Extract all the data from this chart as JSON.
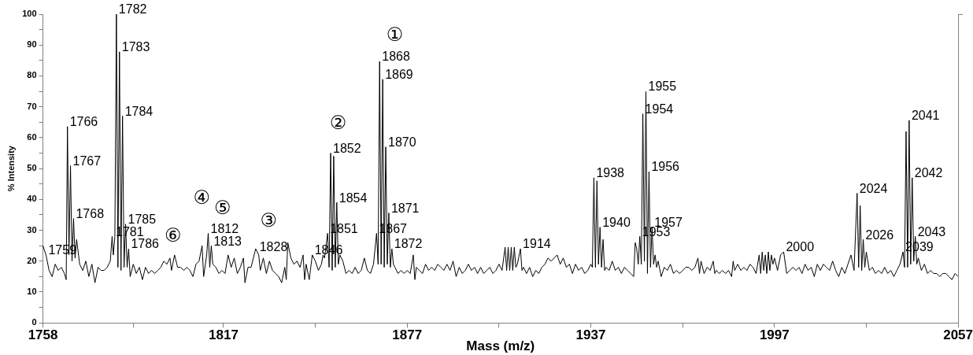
{
  "chart_data": {
    "type": "line",
    "xlabel": "Mass (m/z)",
    "ylabel": "% Intensity",
    "xlim": [
      1758,
      2057
    ],
    "ylim": [
      0,
      100
    ],
    "xticks": [
      1758,
      {
        "value": 1787.5,
        "label": null
      },
      1817,
      {
        "value": 1847,
        "label": null
      },
      1877,
      {
        "value": 1907,
        "label": null
      },
      1937,
      {
        "value": 1967,
        "label": null
      },
      1997,
      {
        "value": 2027,
        "label": null
      },
      2057
    ],
    "yticks": [
      0,
      {
        "value": 5,
        "label": null
      },
      10,
      {
        "value": 15,
        "label": null
      },
      20,
      {
        "value": 25,
        "label": null
      },
      30,
      {
        "value": 35,
        "label": null
      },
      40,
      {
        "value": 45,
        "label": null
      },
      50,
      {
        "value": 55,
        "label": null
      },
      60,
      {
        "value": 65,
        "label": null
      },
      70,
      {
        "value": 75,
        "label": null
      },
      80,
      {
        "value": 85,
        "label": null
      },
      90,
      {
        "value": 95,
        "label": null
      },
      100
    ],
    "marker": "none",
    "legend": false,
    "series": [
      {
        "color": "#000000",
        "x": [
          1758,
          1759,
          1760,
          1761,
          1762,
          1763,
          1764,
          1765,
          1765.6,
          1766,
          1766.5,
          1767,
          1767.5,
          1768,
          1768.5,
          1769,
          1770,
          1771,
          1772,
          1773,
          1774,
          1775,
          1776,
          1777,
          1778,
          1779,
          1780,
          1780.6,
          1781,
          1781.5,
          1782,
          1782.5,
          1783,
          1783.5,
          1784,
          1784.5,
          1785,
          1785.5,
          1786,
          1786.5,
          1787.5,
          1788.5,
          1789.5,
          1790.5,
          1791.5,
          1792.5,
          1793.5,
          1794.5,
          1795.5,
          1796.5,
          1797.5,
          1798.5,
          1799.5,
          1800,
          1801,
          1802,
          1803,
          1804,
          1805,
          1806,
          1807,
          1808,
          1809,
          1810,
          1810.5,
          1811.5,
          1812,
          1812.5,
          1813,
          1813.5,
          1814.5,
          1815.5,
          1816.5,
          1817.5,
          1818.5,
          1819.5,
          1820.5,
          1821.5,
          1822.5,
          1823.5,
          1824,
          1825,
          1826,
          1827,
          1827.5,
          1828,
          1828.5,
          1829,
          1830,
          1831,
          1832,
          1833,
          1834,
          1835,
          1836,
          1837,
          1837.5,
          1838,
          1839,
          1840,
          1841,
          1842,
          1843,
          1843.5,
          1844,
          1845,
          1846,
          1847,
          1848,
          1849,
          1849.5,
          1850,
          1850.5,
          1851,
          1851.5,
          1852,
          1852.5,
          1853,
          1853.5,
          1854,
          1854.5,
          1855,
          1856,
          1857,
          1858,
          1859,
          1860,
          1861,
          1862,
          1863,
          1864,
          1865,
          1866,
          1867,
          1867.5,
          1868,
          1868.5,
          1869,
          1869.5,
          1870,
          1870.5,
          1871,
          1871.5,
          1872,
          1872.5,
          1873,
          1874,
          1875,
          1876,
          1877,
          1878,
          1879,
          1879.5,
          1880,
          1881,
          1882,
          1883,
          1884,
          1885,
          1886,
          1887,
          1888,
          1889,
          1890,
          1891,
          1892,
          1893,
          1894,
          1895,
          1896,
          1897,
          1898,
          1899,
          1900,
          1901,
          1902,
          1903,
          1904,
          1905,
          1906,
          1907,
          1908,
          1909,
          1909.5,
          1910,
          1910.5,
          1911,
          1911.5,
          1912,
          1912.5,
          1913,
          1914,
          1914.5,
          1915,
          1916,
          1917,
          1918,
          1919,
          1920,
          1921,
          1922,
          1923,
          1924,
          1925,
          1926,
          1927,
          1928,
          1929,
          1930,
          1931,
          1932,
          1933,
          1934,
          1935,
          1936,
          1937,
          1937.5,
          1938,
          1938.5,
          1939,
          1939.5,
          1940,
          1940.5,
          1941,
          1941.5,
          1942,
          1943,
          1944,
          1945,
          1946,
          1947,
          1948,
          1949,
          1950,
          1951,
          1951.5,
          1952,
          1952.5,
          1953,
          1953.5,
          1954,
          1954.5,
          1955,
          1955.5,
          1956,
          1956.5,
          1957,
          1957.5,
          1958,
          1958.5,
          1959,
          1960,
          1961,
          1962,
          1963,
          1964,
          1965,
          1966,
          1967,
          1968,
          1969,
          1970,
          1971,
          1972,
          1972.5,
          1973,
          1974,
          1975,
          1976,
          1977,
          1977.5,
          1978,
          1979,
          1980,
          1981,
          1982,
          1983,
          1983.5,
          1984,
          1985,
          1986,
          1987,
          1988,
          1989,
          1990,
          1991,
          1992,
          1992.5,
          1993,
          1993.5,
          1994,
          1994.5,
          1995,
          1995.5,
          1996,
          1996.5,
          1997,
          1998,
          1999,
          2000,
          2001,
          2002,
          2003,
          2004,
          2005,
          2006,
          2007,
          2008,
          2009,
          2010,
          2011,
          2012,
          2013,
          2014,
          2015,
          2016,
          2017,
          2018,
          2019,
          2020,
          2021,
          2022,
          2023,
          2024,
          2024.5,
          2025,
          2025.5,
          2026,
          2026.5,
          2027,
          2028,
          2029,
          2030,
          2031,
          2032,
          2033,
          2034,
          2035,
          2036,
          2037,
          2038,
          2039,
          2039.5,
          2040,
          2040.5,
          2041,
          2041.5,
          2042,
          2042.5,
          2043,
          2043.5,
          2044,
          2045,
          2046,
          2047,
          2048,
          2049,
          2050,
          2051,
          2052,
          2053,
          2054,
          2055,
          2056,
          2057
        ],
        "values": [
          25,
          22,
          17,
          15,
          19,
          17,
          18,
          16,
          14,
          63.6,
          22,
          50.9,
          20,
          33.8,
          21,
          27,
          19,
          17,
          20,
          15,
          19,
          13,
          18,
          17,
          17,
          18,
          20,
          28,
          22,
          28,
          100,
          18,
          87.8,
          17,
          67,
          18,
          32,
          18,
          24,
          15,
          19,
          16,
          18,
          14,
          18,
          16,
          17,
          16,
          17,
          18,
          20,
          19,
          21,
          17,
          22,
          18,
          18,
          17,
          18,
          17,
          15,
          19,
          20,
          25,
          15,
          22,
          29,
          18,
          25,
          19,
          18,
          16,
          17,
          16,
          22,
          18,
          21,
          16,
          18,
          21,
          13,
          18,
          18,
          22,
          24,
          23,
          22,
          17,
          21,
          16,
          20,
          17,
          16,
          15,
          13,
          18,
          14,
          26,
          21,
          19,
          20,
          18,
          22,
          14,
          19,
          14,
          22,
          20,
          17,
          19,
          22,
          21,
          25,
          29,
          18,
          55,
          17,
          54,
          18,
          39,
          19,
          22,
          20,
          16,
          17,
          16,
          18,
          16,
          17,
          21,
          17,
          16,
          19,
          29,
          19,
          84.7,
          19,
          78.9,
          18,
          57,
          19,
          35.6,
          18,
          24,
          19,
          18,
          16,
          17,
          16,
          17,
          16,
          22,
          14,
          18,
          17,
          16,
          19,
          17,
          18,
          17,
          19,
          18,
          17,
          19,
          17,
          20,
          15,
          18,
          16,
          17,
          19,
          17,
          18,
          16,
          18,
          16,
          17,
          18,
          16,
          17,
          19,
          17,
          24.5,
          17,
          24.5,
          17,
          24.5,
          17,
          24.5,
          18,
          19,
          24,
          17,
          18,
          16,
          18,
          15,
          17,
          16,
          18,
          19,
          21,
          20,
          21,
          22,
          19,
          21,
          18,
          19,
          16,
          19,
          17,
          18,
          16,
          17,
          19,
          18,
          47,
          18,
          46,
          19,
          31,
          18,
          27,
          17,
          18,
          17,
          20,
          17,
          18,
          16,
          18,
          17,
          16,
          15,
          26,
          24,
          19,
          28,
          19,
          67.7,
          20,
          75,
          16,
          49,
          18,
          31,
          19,
          22,
          18,
          20,
          15,
          18,
          17,
          19,
          16,
          17,
          16,
          17,
          18,
          18,
          17,
          18,
          21,
          16,
          20,
          16,
          18,
          17,
          20,
          16,
          17,
          16,
          17,
          16,
          17,
          15,
          20,
          17,
          19,
          17,
          18,
          17,
          19,
          18,
          16,
          22,
          16,
          23,
          17,
          22,
          16,
          23,
          17,
          22,
          19,
          21,
          17,
          22,
          23,
          16,
          17,
          18,
          17,
          18,
          16,
          19,
          17,
          18,
          15,
          19,
          17,
          19,
          18,
          17,
          20,
          17,
          15,
          18,
          16,
          19,
          22,
          17,
          42,
          18,
          38,
          17,
          27,
          18,
          23,
          17,
          18,
          16,
          17,
          16,
          18,
          16,
          17,
          15,
          17,
          19,
          23,
          18,
          62,
          18,
          65.6,
          19,
          47,
          20,
          28,
          19,
          21,
          17,
          19,
          16,
          17,
          16,
          16,
          15,
          16,
          16,
          15,
          14,
          16,
          15
        ]
      }
    ],
    "annotations": [
      {
        "text": "1759",
        "x": 1759,
        "y": 22
      },
      {
        "text": "1766",
        "x": 1766,
        "y": 63.6
      },
      {
        "text": "1767",
        "x": 1767,
        "y": 50.9
      },
      {
        "text": "1768",
        "x": 1768,
        "y": 33.8
      },
      {
        "text": "1781",
        "x": 1781,
        "y": 28
      },
      {
        "text": "1782",
        "x": 1782,
        "y": 100
      },
      {
        "text": "1783",
        "x": 1783,
        "y": 87.8
      },
      {
        "text": "1784",
        "x": 1784,
        "y": 67
      },
      {
        "text": "1785",
        "x": 1785,
        "y": 32
      },
      {
        "text": "1786",
        "x": 1786,
        "y": 24
      },
      {
        "text": "1812",
        "x": 1812,
        "y": 29
      },
      {
        "text": "1813",
        "x": 1813,
        "y": 25
      },
      {
        "text": "1828",
        "x": 1828,
        "y": 23
      },
      {
        "text": "1846",
        "x": 1846,
        "y": 22
      },
      {
        "text": "1851",
        "x": 1851,
        "y": 29
      },
      {
        "text": "1852",
        "x": 1852,
        "y": 55
      },
      {
        "text": "1854",
        "x": 1854,
        "y": 39
      },
      {
        "text": "1867",
        "x": 1867,
        "y": 29
      },
      {
        "text": "1868",
        "x": 1868,
        "y": 84.7
      },
      {
        "text": "1869",
        "x": 1869,
        "y": 78.9
      },
      {
        "text": "1870",
        "x": 1870,
        "y": 57
      },
      {
        "text": "1871",
        "x": 1871,
        "y": 35.6
      },
      {
        "text": "1872",
        "x": 1872,
        "y": 24
      },
      {
        "text": "1914",
        "x": 1914,
        "y": 24
      },
      {
        "text": "1938",
        "x": 1938,
        "y": 47
      },
      {
        "text": "1940",
        "x": 1940,
        "y": 31
      },
      {
        "text": "1953",
        "x": 1953,
        "y": 28
      },
      {
        "text": "1954",
        "x": 1954,
        "y": 67.7
      },
      {
        "text": "1955",
        "x": 1955,
        "y": 75
      },
      {
        "text": "1956",
        "x": 1956,
        "y": 49
      },
      {
        "text": "1957",
        "x": 1957,
        "y": 31
      },
      {
        "text": "2000",
        "x": 2000,
        "y": 23
      },
      {
        "text": "2024",
        "x": 2024,
        "y": 42
      },
      {
        "text": "2026",
        "x": 2026,
        "y": 27
      },
      {
        "text": "2039",
        "x": 2039,
        "y": 23
      },
      {
        "text": "2041",
        "x": 2041,
        "y": 65.6
      },
      {
        "text": "2042",
        "x": 2042,
        "y": 47
      },
      {
        "text": "2043",
        "x": 2043,
        "y": 28
      },
      "①",
      "②",
      "③",
      "④",
      "⑤",
      "⑥"
    ]
  }
}
